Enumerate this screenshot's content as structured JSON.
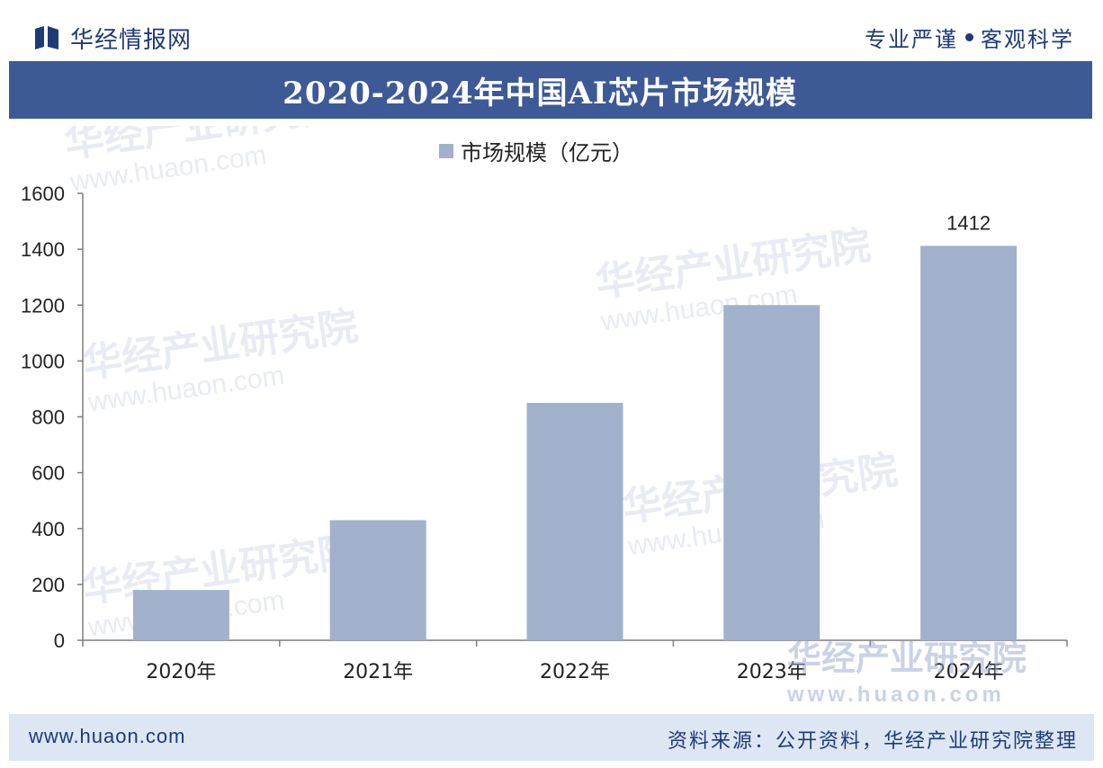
{
  "header": {
    "logo_text": "华经情报网",
    "slogan_left": "专业严谨",
    "slogan_right": "客观科学"
  },
  "title": "2020-2024年中国AI芯片市场规模",
  "chart_data": {
    "type": "bar",
    "categories": [
      "2020年",
      "2021年",
      "2022年",
      "2023年",
      "2024年"
    ],
    "series": [
      {
        "name": "市场规模（亿元）",
        "values": [
          180,
          430,
          850,
          1200,
          1412
        ],
        "color": "#a1b1cb"
      }
    ],
    "data_labels": [
      {
        "index": 4,
        "text": "1412"
      }
    ],
    "ylim": [
      0,
      1600
    ],
    "yticks": [
      0,
      200,
      400,
      600,
      800,
      1000,
      1200,
      1400,
      1600
    ],
    "xlabel": "",
    "ylabel": "",
    "legend": "top-center",
    "grid": false
  },
  "watermark": {
    "text": "华经产业研究院",
    "url": "www.huaon.com"
  },
  "footer": {
    "website": "www.huaon.com",
    "source": "资料来源：公开资料，华经产业研究院整理"
  },
  "colors": {
    "brand": "#1f3a78",
    "title_bar": "#3d5a96",
    "bar": "#a1b1cb",
    "footer_bg": "#dde6f3"
  }
}
